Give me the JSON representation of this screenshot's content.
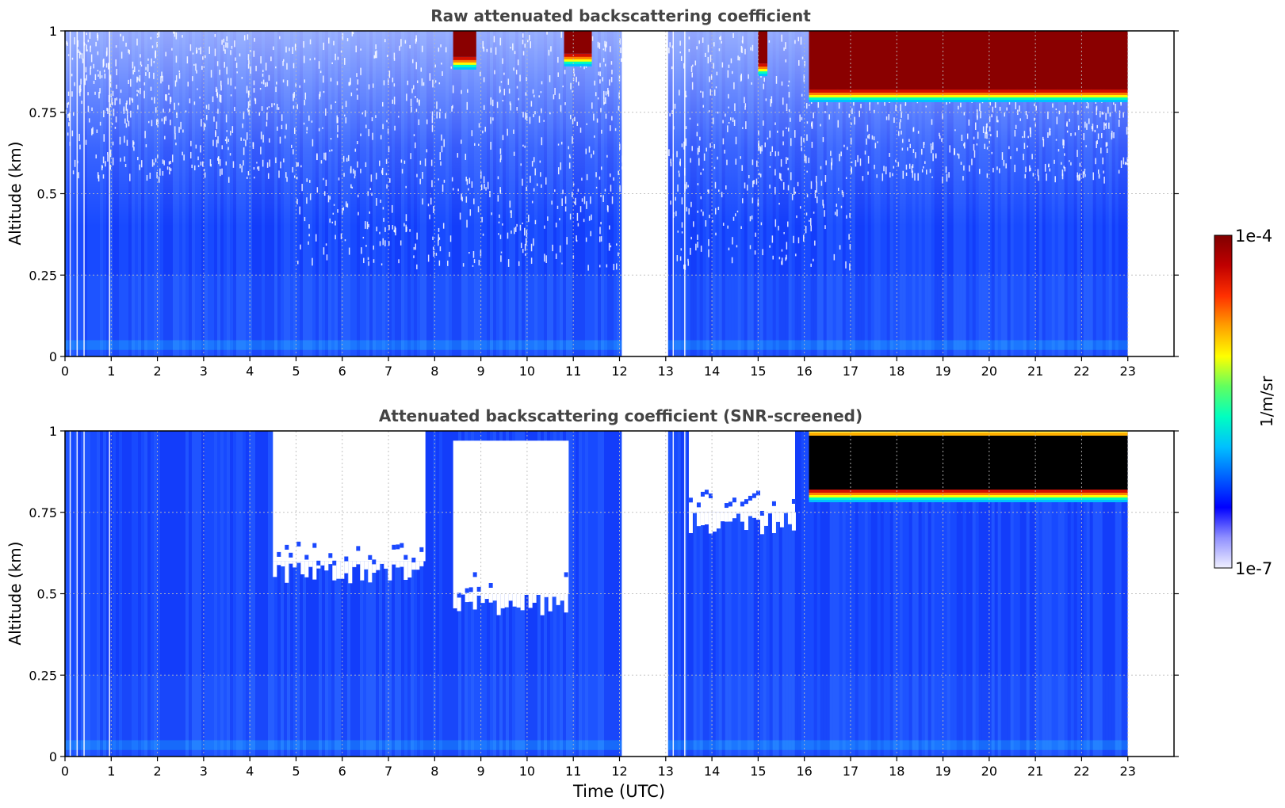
{
  "figure": {
    "xlabel": "Time (UTC)",
    "x_tick_labels": [
      "0",
      "1",
      "2",
      "3",
      "4",
      "5",
      "6",
      "7",
      "8",
      "9",
      "10",
      "11",
      "12",
      "13",
      "14",
      "15",
      "16",
      "17",
      "18",
      "19",
      "20",
      "21",
      "22",
      "23"
    ],
    "y_tick_labels": [
      "0",
      "0.25",
      "0.5",
      "0.75",
      "1"
    ]
  },
  "chart_data": [
    {
      "type": "heatmap",
      "title": "Raw attenuated backscattering coefficient",
      "xlabel": "",
      "ylabel": "Altitude (km)",
      "xlim": [
        0,
        24
      ],
      "ylim": [
        0,
        1
      ],
      "x_ticks": [
        0,
        1,
        2,
        3,
        4,
        5,
        6,
        7,
        8,
        9,
        10,
        11,
        12,
        13,
        14,
        15,
        16,
        17,
        18,
        19,
        20,
        21,
        22,
        23
      ],
      "y_ticks": [
        0,
        0.25,
        0.5,
        0.75,
        1
      ],
      "grid": true,
      "data_gap_hours": [
        12.05,
        13.05
      ],
      "data_end_hour": 23.0,
      "features": [
        {
          "kind": "cloud_layer",
          "from_hour": 8.4,
          "to_hour": 8.9,
          "base_km": 0.92,
          "top_km": 1.0,
          "level": "1e-4"
        },
        {
          "kind": "cloud_layer",
          "from_hour": 10.8,
          "to_hour": 11.4,
          "base_km": 0.93,
          "top_km": 1.0,
          "level": "1e-4"
        },
        {
          "kind": "cloud_layer",
          "from_hour": 15.0,
          "to_hour": 15.2,
          "base_km": 0.9,
          "top_km": 1.0,
          "level": "1e-4"
        },
        {
          "kind": "cloud_layer",
          "from_hour": 16.1,
          "to_hour": 23.0,
          "base_km": 0.82,
          "top_km": 1.0,
          "level": "1e-4"
        }
      ]
    },
    {
      "type": "heatmap",
      "title": "Attenuated backscattering coefficient (SNR-screened)",
      "xlabel": "Time (UTC)",
      "ylabel": "Altitude (km)",
      "xlim": [
        0,
        24
      ],
      "ylim": [
        0,
        1
      ],
      "x_ticks": [
        0,
        1,
        2,
        3,
        4,
        5,
        6,
        7,
        8,
        9,
        10,
        11,
        12,
        13,
        14,
        15,
        16,
        17,
        18,
        19,
        20,
        21,
        22,
        23
      ],
      "y_ticks": [
        0,
        0.25,
        0.5,
        0.75,
        1
      ],
      "grid": true,
      "data_gap_hours": [
        12.05,
        13.05
      ],
      "data_end_hour": 23.0,
      "features": [
        {
          "kind": "screened_out",
          "from_hour": 4.5,
          "to_hour": 7.8,
          "base_km": 0.6,
          "top_km": 1.0
        },
        {
          "kind": "screened_out",
          "from_hour": 8.4,
          "to_hour": 10.9,
          "base_km": 0.5,
          "top_km": 0.97
        },
        {
          "kind": "screened_out",
          "from_hour": 13.5,
          "to_hour": 15.8,
          "base_km": 0.75,
          "top_km": 1.0
        },
        {
          "kind": "cloud_layer",
          "from_hour": 16.1,
          "to_hour": 23.0,
          "base_km": 0.82,
          "top_km": 1.0,
          "level": "saturated"
        }
      ]
    }
  ],
  "colorbar": {
    "label": "1/m/sr",
    "max_label": "1e-4",
    "min_label": "1e-7",
    "colors": [
      "#f0f0ff",
      "#9090ff",
      "#0000ff",
      "#0060ff",
      "#00c0ff",
      "#00ffc0",
      "#60ff60",
      "#ffff00",
      "#ffa000",
      "#ff3000",
      "#c00000",
      "#800000"
    ]
  }
}
